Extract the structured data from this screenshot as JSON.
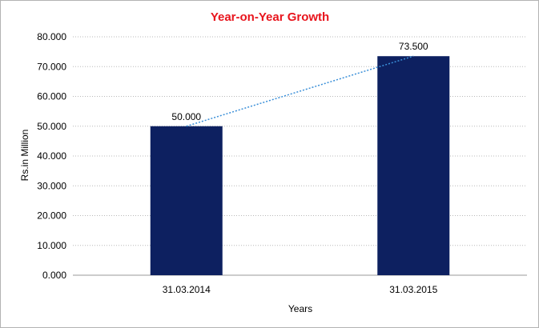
{
  "chart_data": {
    "type": "bar",
    "title": "Year-on-Year Growth",
    "xlabel": "Years",
    "ylabel": "Rs.in Million",
    "categories": [
      "31.03.2014",
      "31.03.2015"
    ],
    "values": [
      50,
      73.5
    ],
    "data_labels": [
      "50.000",
      "73.500"
    ],
    "ylim": [
      0,
      80
    ],
    "y_ticks": [
      0,
      10,
      20,
      30,
      40,
      50,
      60,
      70,
      80
    ],
    "y_tick_labels": [
      "0.000",
      "10.000",
      "20.000",
      "30.000",
      "40.000",
      "50.000",
      "60.000",
      "70.000",
      "80.000"
    ],
    "grid": true,
    "legend": "none",
    "trendline": "linear",
    "colors": {
      "bar": "#0d2060",
      "title": "#e8141c",
      "grid": "#b8b8b8",
      "trendline": "#3a8fd8"
    }
  }
}
